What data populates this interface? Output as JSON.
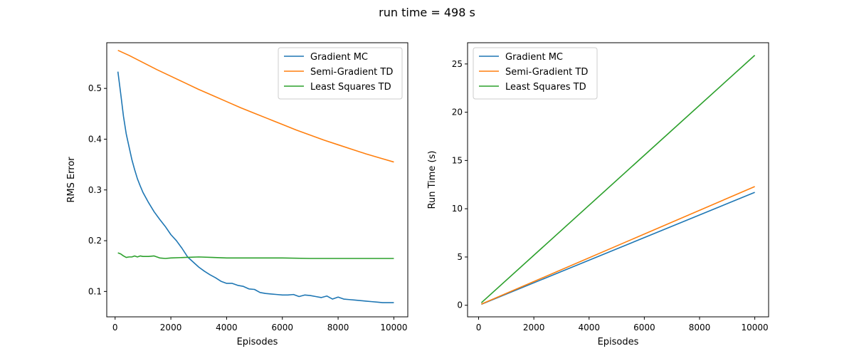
{
  "suptitle": "run time = 498 s",
  "colors": {
    "gradient_mc": "#1f77b4",
    "semi_gradient_td": "#ff7f0e",
    "least_squares_td": "#2ca02c"
  },
  "chart_data": [
    {
      "type": "line",
      "title": "",
      "xlabel": "Episodes",
      "ylabel": "RMS Error",
      "xlim": [
        -300,
        10500
      ],
      "ylim": [
        0.05,
        0.59
      ],
      "xticks": [
        0,
        2000,
        4000,
        6000,
        8000,
        10000
      ],
      "yticks": [
        0.1,
        0.2,
        0.3,
        0.4,
        0.5
      ],
      "grid": false,
      "legend_position": "upper right",
      "series": [
        {
          "name": "Gradient MC",
          "color": "#1f77b4",
          "x": [
            100,
            200,
            300,
            400,
            500,
            600,
            700,
            800,
            900,
            1000,
            1200,
            1400,
            1600,
            1800,
            2000,
            2200,
            2400,
            2600,
            2800,
            3000,
            3200,
            3400,
            3600,
            3800,
            4000,
            4200,
            4400,
            4600,
            4800,
            5000,
            5200,
            5400,
            5600,
            5800,
            6000,
            6200,
            6400,
            6600,
            6800,
            7000,
            7200,
            7400,
            7600,
            7800,
            8000,
            8200,
            8400,
            8600,
            8800,
            9000,
            9200,
            9400,
            9600,
            9800,
            10000
          ],
          "y": [
            0.533,
            0.49,
            0.445,
            0.41,
            0.385,
            0.36,
            0.34,
            0.322,
            0.308,
            0.295,
            0.275,
            0.257,
            0.242,
            0.228,
            0.212,
            0.2,
            0.185,
            0.168,
            0.158,
            0.148,
            0.14,
            0.133,
            0.127,
            0.12,
            0.116,
            0.116,
            0.112,
            0.11,
            0.105,
            0.104,
            0.098,
            0.096,
            0.095,
            0.094,
            0.093,
            0.093,
            0.094,
            0.09,
            0.093,
            0.092,
            0.09,
            0.088,
            0.091,
            0.085,
            0.089,
            0.085,
            0.084,
            0.083,
            0.082,
            0.081,
            0.08,
            0.079,
            0.078,
            0.078,
            0.078
          ]
        },
        {
          "name": "Semi-Gradient TD",
          "color": "#ff7f0e",
          "x": [
            100,
            500,
            1000,
            1500,
            2000,
            2500,
            3000,
            3500,
            4000,
            4500,
            5000,
            5500,
            6000,
            6500,
            7000,
            7500,
            8000,
            8500,
            9000,
            9500,
            10000
          ],
          "y": [
            0.575,
            0.565,
            0.551,
            0.537,
            0.524,
            0.511,
            0.498,
            0.486,
            0.474,
            0.462,
            0.451,
            0.44,
            0.429,
            0.418,
            0.408,
            0.398,
            0.389,
            0.38,
            0.371,
            0.363,
            0.355
          ]
        },
        {
          "name": "Least Squares TD",
          "color": "#2ca02c",
          "x": [
            100,
            200,
            300,
            400,
            500,
            600,
            700,
            800,
            900,
            1000,
            1200,
            1400,
            1600,
            1800,
            2000,
            2500,
            3000,
            3500,
            4000,
            5000,
            6000,
            7000,
            8000,
            9000,
            10000
          ],
          "y": [
            0.176,
            0.174,
            0.17,
            0.167,
            0.168,
            0.168,
            0.17,
            0.168,
            0.17,
            0.169,
            0.169,
            0.17,
            0.166,
            0.165,
            0.166,
            0.167,
            0.168,
            0.167,
            0.166,
            0.166,
            0.166,
            0.165,
            0.165,
            0.165,
            0.165
          ]
        }
      ]
    },
    {
      "type": "line",
      "title": "",
      "xlabel": "Episodes",
      "ylabel": "Run Time (s)",
      "xlim": [
        -400,
        10500
      ],
      "ylim": [
        -1.2,
        27.2
      ],
      "xticks": [
        0,
        2000,
        4000,
        6000,
        8000,
        10000
      ],
      "yticks": [
        0,
        5,
        10,
        15,
        20,
        25
      ],
      "grid": false,
      "legend_position": "upper left",
      "series": [
        {
          "name": "Gradient MC",
          "color": "#1f77b4",
          "x": [
            100,
            10000
          ],
          "y": [
            0.1,
            11.7
          ]
        },
        {
          "name": "Semi-Gradient TD",
          "color": "#ff7f0e",
          "x": [
            100,
            10000
          ],
          "y": [
            0.12,
            12.3
          ]
        },
        {
          "name": "Least Squares TD",
          "color": "#2ca02c",
          "x": [
            100,
            10000
          ],
          "y": [
            0.26,
            25.9
          ]
        }
      ]
    }
  ]
}
